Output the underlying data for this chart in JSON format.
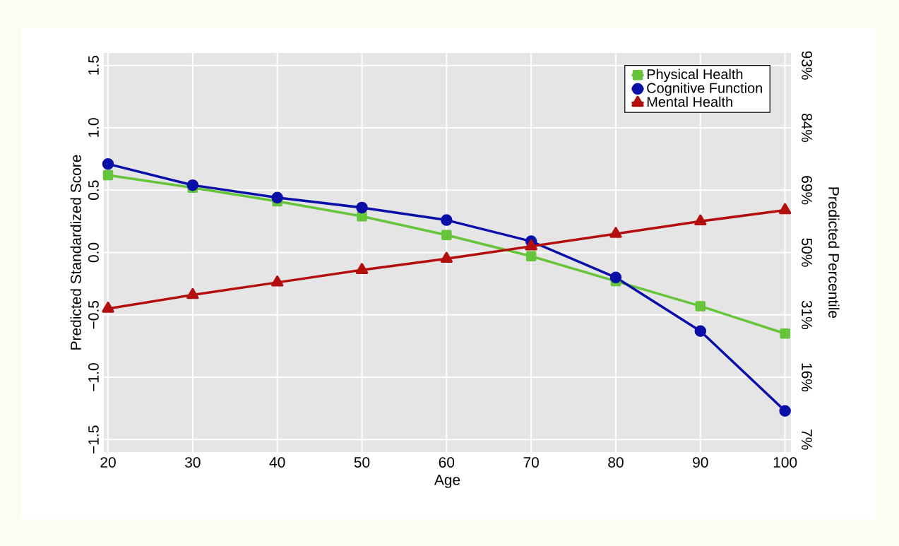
{
  "chart_data": {
    "type": "line",
    "xlabel": "Age",
    "ylabel": "Predicted Standardized Score",
    "y2label": "Predicted Percentile",
    "x": [
      20,
      30,
      40,
      50,
      60,
      70,
      80,
      90,
      100
    ],
    "series": [
      {
        "name": "Physical Health",
        "color": "#66c43a",
        "marker": "square",
        "values": [
          0.62,
          0.52,
          0.41,
          0.29,
          0.14,
          -0.03,
          -0.23,
          -0.43,
          -0.65
        ]
      },
      {
        "name": "Cognitive Function",
        "color": "#0a0fa8",
        "marker": "circle",
        "values": [
          0.71,
          0.54,
          0.44,
          0.36,
          0.26,
          0.09,
          -0.2,
          -0.63,
          -1.27
        ]
      },
      {
        "name": "Mental Health",
        "color": "#b40f0f",
        "marker": "triangle",
        "values": [
          -0.45,
          -0.34,
          -0.24,
          -0.14,
          -0.05,
          0.05,
          0.15,
          0.25,
          0.34
        ]
      }
    ],
    "xlim": [
      19.5,
      100.7
    ],
    "xticks": [
      20,
      30,
      40,
      50,
      60,
      70,
      80,
      90,
      100
    ],
    "ylim": [
      -1.6,
      1.6
    ],
    "yticks": [
      {
        "value": -1.5,
        "label": "−1.5"
      },
      {
        "value": -1.0,
        "label": "−1.0"
      },
      {
        "value": -0.5,
        "label": "−0.5"
      },
      {
        "value": 0.0,
        "label": "0.0"
      },
      {
        "value": 0.5,
        "label": "0.5"
      },
      {
        "value": 1.0,
        "label": "1.0"
      },
      {
        "value": 1.5,
        "label": "1.5"
      }
    ],
    "annotations": [
      "7%",
      "16%",
      "31%",
      "50%",
      "69%",
      "84%",
      "93%"
    ],
    "grid": true,
    "legend": "top right",
    "line_style": "solid"
  }
}
